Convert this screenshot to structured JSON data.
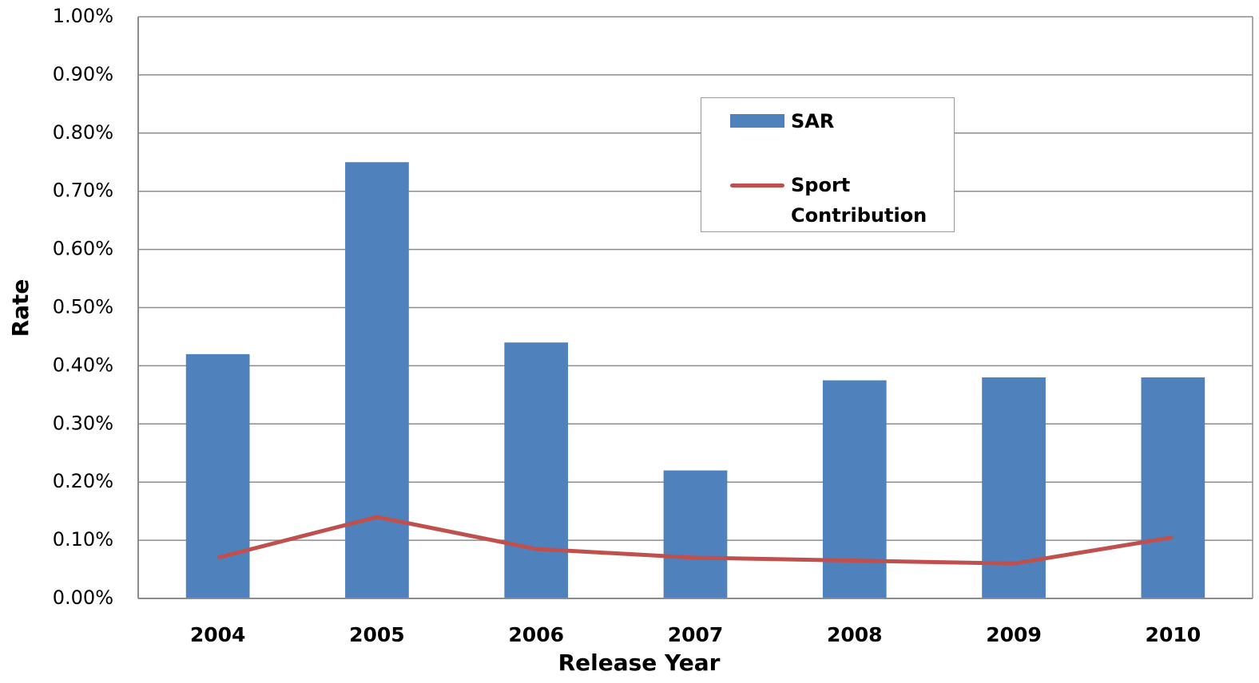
{
  "chart_data": {
    "type": "bar",
    "x_label": "Release Year",
    "y_label": "Rate",
    "categories": [
      "2004",
      "2005",
      "2006",
      "2007",
      "2008",
      "2009",
      "2010"
    ],
    "series": [
      {
        "name": "SAR",
        "type": "bar",
        "color": "#4f81bd",
        "values": [
          0.42,
          0.75,
          0.44,
          0.22,
          0.375,
          0.38,
          0.38
        ]
      },
      {
        "name": "Sport Contribution",
        "type": "line",
        "color": "#c0504d",
        "values": [
          0.07,
          0.14,
          0.085,
          0.07,
          0.065,
          0.06,
          0.105
        ]
      }
    ],
    "ylim": [
      0,
      1.0
    ],
    "yticks": [
      {
        "value": 0,
        "label": "0.00%"
      },
      {
        "value": 0.1,
        "label": "0.10%"
      },
      {
        "value": 0.2,
        "label": "0.20%"
      },
      {
        "value": 0.3,
        "label": "0.30%"
      },
      {
        "value": 0.4,
        "label": "0.40%"
      },
      {
        "value": 0.5,
        "label": "0.50%"
      },
      {
        "value": 0.6,
        "label": "0.60%"
      },
      {
        "value": 0.7,
        "label": "0.70%"
      },
      {
        "value": 0.8,
        "label": "0.80%"
      },
      {
        "value": 0.9,
        "label": "0.90%"
      },
      {
        "value": 1.0,
        "label": "1.00%"
      }
    ],
    "grid": true,
    "legend": "top-center"
  }
}
